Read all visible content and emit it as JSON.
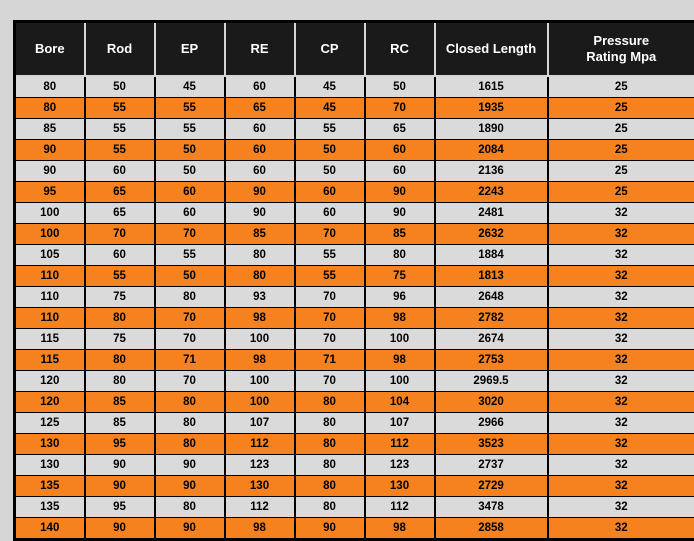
{
  "colors": {
    "header_bg": "#1A1A1A",
    "header_text": "#FFFFFF",
    "row_orange": "#F6821F",
    "row_light": "#DADADA",
    "page_bg": "#D6D6D6",
    "border": "#000000"
  },
  "table": {
    "columns": [
      "Bore",
      "Rod",
      "EP",
      "RE",
      "CP",
      "RC",
      "Closed Length",
      "Pressure Rating Mpa"
    ],
    "striping": "rows alternate light then orange, starting with light",
    "rows": [
      [
        "80",
        "50",
        "45",
        "60",
        "45",
        "50",
        "1615",
        "25"
      ],
      [
        "80",
        "55",
        "55",
        "65",
        "45",
        "70",
        "1935",
        "25"
      ],
      [
        "85",
        "55",
        "55",
        "60",
        "55",
        "65",
        "1890",
        "25"
      ],
      [
        "90",
        "55",
        "50",
        "60",
        "50",
        "60",
        "2084",
        "25"
      ],
      [
        "90",
        "60",
        "50",
        "60",
        "50",
        "60",
        "2136",
        "25"
      ],
      [
        "95",
        "65",
        "60",
        "90",
        "60",
        "90",
        "2243",
        "25"
      ],
      [
        "100",
        "65",
        "60",
        "90",
        "60",
        "90",
        "2481",
        "32"
      ],
      [
        "100",
        "70",
        "70",
        "85",
        "70",
        "85",
        "2632",
        "32"
      ],
      [
        "105",
        "60",
        "55",
        "80",
        "55",
        "80",
        "1884",
        "32"
      ],
      [
        "110",
        "55",
        "50",
        "80",
        "55",
        "75",
        "1813",
        "32"
      ],
      [
        "110",
        "75",
        "80",
        "93",
        "70",
        "96",
        "2648",
        "32"
      ],
      [
        "110",
        "80",
        "70",
        "98",
        "70",
        "98",
        "2782",
        "32"
      ],
      [
        "115",
        "75",
        "70",
        "100",
        "70",
        "100",
        "2674",
        "32"
      ],
      [
        "115",
        "80",
        "71",
        "98",
        "71",
        "98",
        "2753",
        "32"
      ],
      [
        "120",
        "80",
        "70",
        "100",
        "70",
        "100",
        "2969.5",
        "32"
      ],
      [
        "120",
        "85",
        "80",
        "100",
        "80",
        "104",
        "3020",
        "32"
      ],
      [
        "125",
        "85",
        "80",
        "107",
        "80",
        "107",
        "2966",
        "32"
      ],
      [
        "130",
        "95",
        "80",
        "112",
        "80",
        "112",
        "3523",
        "32"
      ],
      [
        "130",
        "90",
        "90",
        "123",
        "80",
        "123",
        "2737",
        "32"
      ],
      [
        "135",
        "90",
        "90",
        "130",
        "80",
        "130",
        "2729",
        "32"
      ],
      [
        "135",
        "95",
        "80",
        "112",
        "80",
        "112",
        "3478",
        "32"
      ],
      [
        "140",
        "90",
        "90",
        "98",
        "90",
        "98",
        "2858",
        "32"
      ]
    ]
  }
}
